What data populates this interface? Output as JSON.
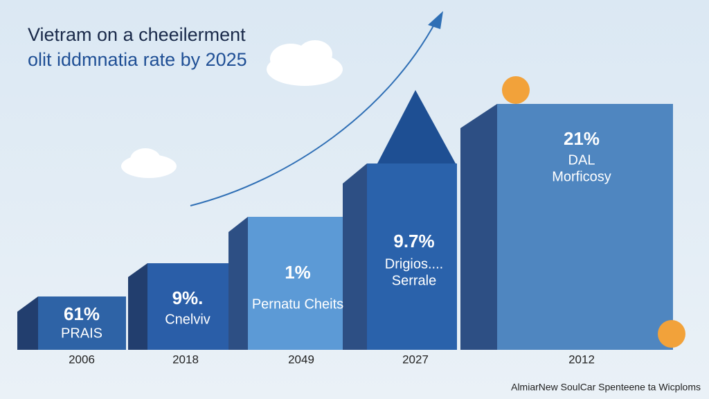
{
  "header": {
    "title_line1": "Vietram on a cheeilerment",
    "title_line2": "olit iddmnatia rate by 2025"
  },
  "blocks": [
    {
      "value": "61%",
      "label": "PRAIS",
      "year": "2006"
    },
    {
      "value": "9%.",
      "label": "Cnelviv",
      "year": "2018"
    },
    {
      "value": "1%",
      "label": "Pernatu Cheits",
      "year": "2049"
    },
    {
      "value": "9.7%",
      "label": "Drigios....",
      "sublabel": "Serrale",
      "year": "2027"
    },
    {
      "value": "21%",
      "label": "DAL",
      "sublabel": "Morficosy",
      "year": "2012"
    }
  ],
  "footer": "AlmiarNew SoulCar Spenteene ta Wicploms"
}
